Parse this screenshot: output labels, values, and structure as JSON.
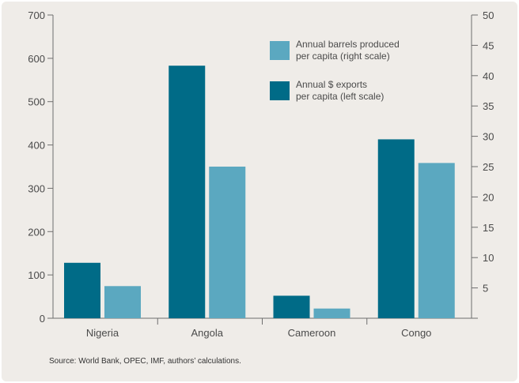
{
  "chart_data": {
    "type": "bar",
    "categories": [
      "Nigeria",
      "Angola",
      "Cameroon",
      "Congo"
    ],
    "series": [
      {
        "name": "Annual $ exports per capita (left scale)",
        "legend_lines": [
          "Annual $ exports",
          "per capita (left scale)"
        ],
        "axis": "left",
        "color": "#006b87",
        "values": [
          128,
          583,
          52,
          413
        ]
      },
      {
        "name": "Annual barrels produced per capita (right scale)",
        "legend_lines": [
          "Annual barrels produced",
          "per capita (right scale)"
        ],
        "axis": "right",
        "color": "#5ba8c0",
        "values": [
          5.3,
          25,
          1.6,
          25.6
        ]
      }
    ],
    "legend_order": [
      1,
      0
    ],
    "left_axis": {
      "ylim": [
        0,
        700
      ],
      "ticks": [
        0,
        100,
        200,
        300,
        400,
        500,
        600,
        700
      ]
    },
    "right_axis": {
      "ylim": [
        0,
        50
      ],
      "ticks": [
        5,
        10,
        15,
        20,
        25,
        30,
        35,
        40,
        45,
        50
      ]
    },
    "grid": false,
    "legend_position": "top-right"
  },
  "source_note": "Source: World Bank, OPEC, IMF, authors’ calculations."
}
